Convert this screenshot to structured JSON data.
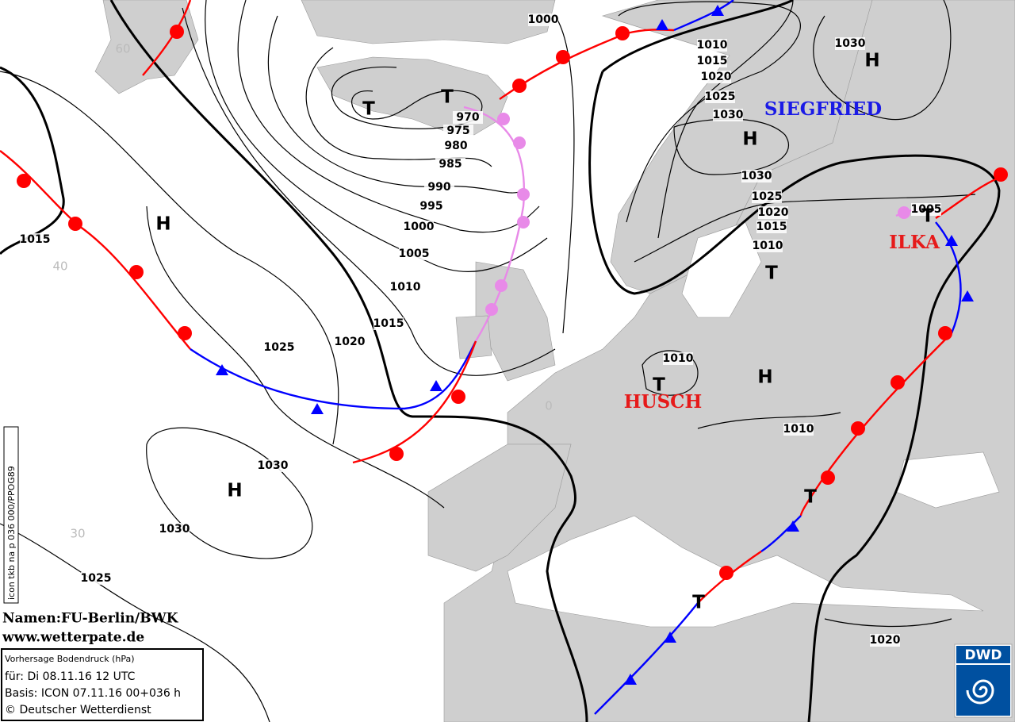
{
  "side_label": "icon tkb na p 036 000/PPOG89",
  "credits": {
    "names": "Namen:FU-Berlin/BWK",
    "website": "www.wetterpate.de"
  },
  "info_box": {
    "lines": [
      "Vorhersage Bodendruck (hPa)",
      "für:  Di 08.11.16  12 UTC",
      "Basis: ICON  07.11.16 00+036 h",
      "© Deutscher Wetterdienst"
    ]
  },
  "logo": "DWD",
  "latitude_labels": [
    60,
    40,
    30,
    0
  ],
  "isobar_labels": [
    1000,
    1010,
    1015,
    1020,
    1025,
    1030,
    1030,
    970,
    975,
    980,
    985,
    990,
    995,
    1000,
    1005,
    1010,
    1015,
    1020,
    1025,
    1015,
    1030,
    1025,
    1020,
    1015,
    1010,
    1005,
    1010,
    1010,
    1030,
    1030,
    1025,
    1020
  ],
  "pressure_centers": [
    "T",
    "T",
    "H",
    "H",
    "T",
    "H",
    "T",
    "H",
    "H",
    "T",
    "T",
    "T"
  ],
  "system_names": [
    "SIEGFRIED",
    "ILKA",
    "HUSCH"
  ]
}
